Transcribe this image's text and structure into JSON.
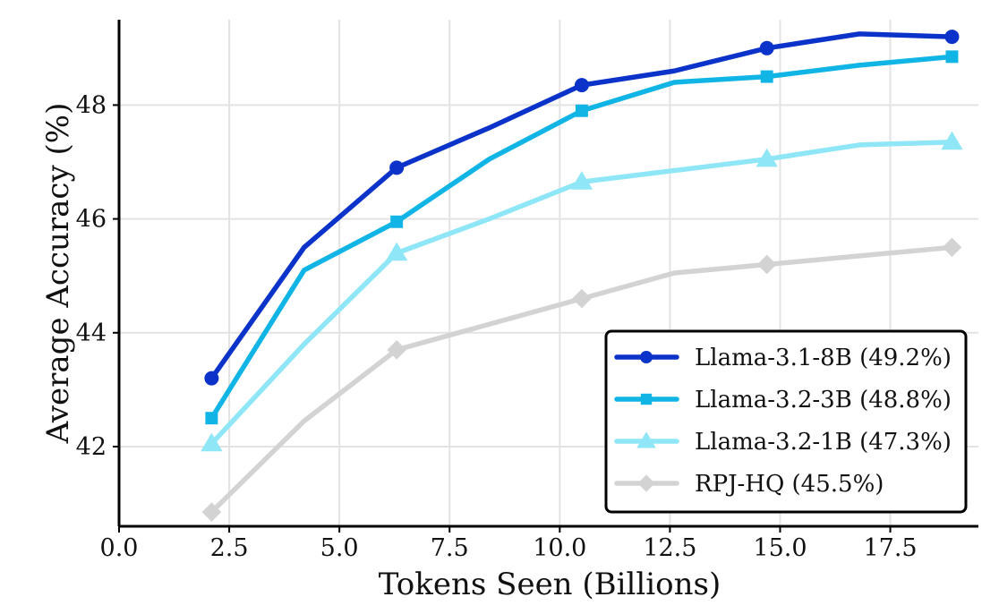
{
  "chart_data": {
    "type": "line",
    "title": "",
    "xlabel": "Tokens Seen (Billions)",
    "ylabel": "Average Accuracy (%)",
    "xlim": [
      0.0,
      19.5
    ],
    "ylim": [
      40.6,
      49.5
    ],
    "xticks": [
      "0.0",
      "2.5",
      "5.0",
      "7.5",
      "10.0",
      "12.5",
      "15.0",
      "17.5"
    ],
    "xtick_values": [
      0.0,
      2.5,
      5.0,
      7.5,
      10.0,
      12.5,
      15.0,
      17.5
    ],
    "yticks": [
      "42",
      "44",
      "46",
      "48"
    ],
    "ytick_values": [
      42,
      44,
      46,
      48
    ],
    "grid": true,
    "legend_position": "lower-right",
    "series": [
      {
        "name": "Llama-3.1-8B (49.2%)",
        "color": "#0c33c9",
        "marker": "circle",
        "x": [
          2.1,
          4.2,
          6.3,
          8.4,
          10.5,
          12.6,
          14.7,
          16.8,
          18.9
        ],
        "y": [
          43.2,
          45.5,
          46.9,
          47.6,
          48.35,
          48.6,
          49.0,
          49.25,
          49.2
        ],
        "marker_indices": [
          0,
          2,
          4,
          6,
          8
        ]
      },
      {
        "name": "Llama-3.2-3B (48.8%)",
        "color": "#11b5e5",
        "marker": "square",
        "x": [
          2.1,
          4.2,
          6.3,
          8.4,
          10.5,
          12.6,
          14.7,
          16.8,
          18.9
        ],
        "y": [
          42.5,
          45.1,
          45.95,
          47.05,
          47.9,
          48.4,
          48.5,
          48.7,
          48.85
        ],
        "marker_indices": [
          0,
          2,
          4,
          6,
          8
        ]
      },
      {
        "name": "Llama-3.2-1B (47.3%)",
        "color": "#8ee6f6",
        "marker": "triangle",
        "x": [
          2.1,
          4.2,
          6.3,
          8.4,
          10.5,
          12.6,
          14.7,
          16.8,
          18.9
        ],
        "y": [
          42.05,
          43.8,
          45.4,
          46.0,
          46.65,
          46.85,
          47.05,
          47.3,
          47.35
        ],
        "marker_indices": [
          0,
          2,
          4,
          6,
          8
        ]
      },
      {
        "name": "RPJ-HQ (45.5%)",
        "color": "#d3d3d3",
        "marker": "diamond",
        "x": [
          2.1,
          4.2,
          6.3,
          8.4,
          10.5,
          12.6,
          14.7,
          16.8,
          18.9
        ],
        "y": [
          40.85,
          42.45,
          43.7,
          44.15,
          44.6,
          45.05,
          45.2,
          45.35,
          45.5
        ],
        "marker_indices": [
          0,
          2,
          4,
          6,
          8
        ]
      }
    ]
  }
}
